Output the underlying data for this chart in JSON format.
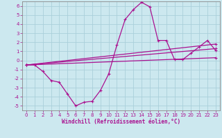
{
  "xlabel": "Windchill (Refroidissement éolien,°C)",
  "xlim": [
    -0.5,
    23.5
  ],
  "ylim": [
    -5.5,
    6.5
  ],
  "yticks": [
    -5,
    -4,
    -3,
    -2,
    -1,
    0,
    1,
    2,
    3,
    4,
    5,
    6
  ],
  "xticks": [
    0,
    1,
    2,
    3,
    4,
    5,
    6,
    7,
    8,
    9,
    10,
    11,
    12,
    13,
    14,
    15,
    16,
    17,
    18,
    19,
    20,
    21,
    22,
    23
  ],
  "bg_color": "#cce8ef",
  "line_color": "#aa1190",
  "grid_color": "#aacfda",
  "line1_x": [
    0,
    1,
    2,
    3,
    4,
    5,
    6,
    7,
    8,
    9,
    10,
    11,
    12,
    13,
    14,
    15,
    16,
    17,
    18,
    19,
    20,
    21,
    22,
    23
  ],
  "line1_y": [
    -0.5,
    -0.5,
    -1.2,
    -2.2,
    -2.4,
    -3.7,
    -5.0,
    -4.6,
    -4.5,
    -3.3,
    -1.5,
    1.7,
    4.5,
    5.6,
    6.4,
    5.9,
    2.2,
    2.2,
    0.1,
    0.1,
    0.8,
    1.5,
    2.2,
    1.1
  ],
  "line2_x": [
    0,
    23
  ],
  "line2_y": [
    -0.5,
    1.3
  ],
  "line3_x": [
    0,
    23
  ],
  "line3_y": [
    -0.5,
    0.3
  ],
  "line4_x": [
    0,
    23
  ],
  "line4_y": [
    -0.5,
    1.8
  ]
}
